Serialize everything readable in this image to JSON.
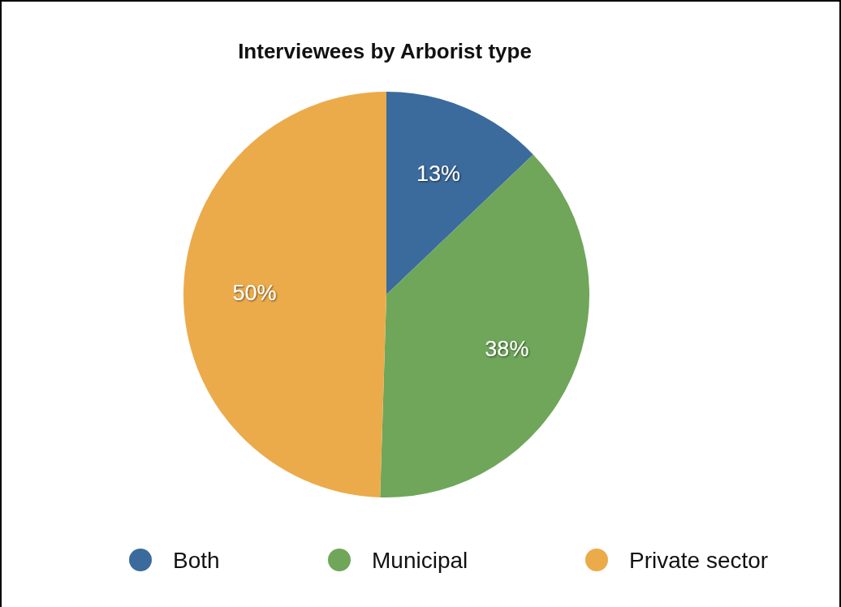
{
  "chart_data": {
    "type": "pie",
    "title": "Interviewees by Arborist type",
    "categories": [
      "Both",
      "Municipal",
      "Private sector"
    ],
    "values": [
      13,
      38,
      50
    ],
    "colors": [
      "#3b6b9c",
      "#6fa65a",
      "#ebab4b"
    ],
    "value_labels": [
      "13%",
      "38%",
      "50%"
    ],
    "legend": "bottom"
  }
}
